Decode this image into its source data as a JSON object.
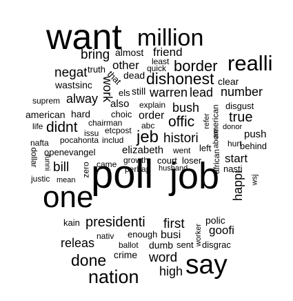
{
  "cloud": {
    "words": [
      "want",
      "million",
      "bring",
      "almost",
      "friend",
      "least",
      "realli",
      "other",
      "quick",
      "border",
      "negat",
      "truth",
      "dead",
      "dishonest",
      "wast",
      "sinc",
      "work",
      "that",
      "clear",
      "alway",
      "els",
      "still",
      "warren",
      "lead",
      "number",
      "suprem",
      "also",
      "explain",
      "bush",
      "disgust",
      "choic",
      "american",
      "hard",
      "order",
      "true",
      "chairman",
      "abc",
      "offic",
      "refer",
      "life",
      "didnt",
      "issu",
      "etcpost",
      "jeb",
      "histori",
      "donor",
      "american",
      "push",
      "abore",
      "nafta",
      "pocahonta",
      "includ",
      "hurt",
      "behind",
      "elizabeth",
      "went",
      "left",
      "openevangel",
      "dollar",
      "growth",
      "court",
      "loser",
      "start",
      "bill",
      "came",
      "perhap",
      "husband",
      "african",
      "nasti",
      "justic",
      "mean",
      "zero",
      "funni",
      "wsj",
      "one",
      "poll",
      "job",
      "happi",
      "kain",
      "presidenti",
      "first",
      "polic",
      "goofi",
      "nativ",
      "enough",
      "releas",
      "busi",
      "worker",
      "ballot",
      "dumb",
      "sent",
      "disgrac",
      "done",
      "crime",
      "word",
      "say",
      "nation",
      "high"
    ]
  }
}
